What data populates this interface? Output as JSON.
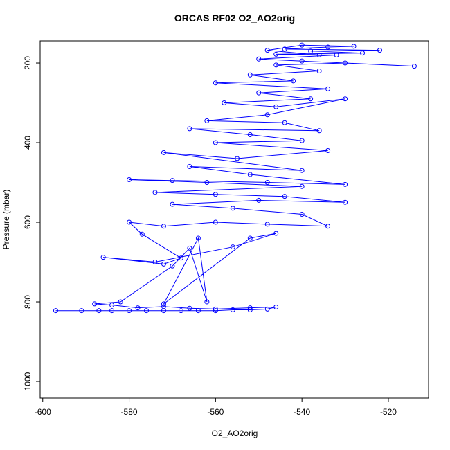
{
  "chart_data": {
    "type": "line",
    "title": "ORCAS RF02 O2_AO2orig",
    "x_label": "O2_AO2orig",
    "y_label": "Pressure (mbar)",
    "color": "#0000ff",
    "markers": true,
    "y_reversed": true,
    "xlim": [
      -600.6,
      -510.7
    ],
    "ylim": [
      144.3,
      1041.7
    ],
    "xticks": [
      -600,
      -580,
      -560,
      -540,
      -520
    ],
    "yticks": [
      200,
      400,
      600,
      800,
      1000
    ],
    "x": [
      -597,
      -591,
      -587,
      -584,
      -580,
      -576,
      -572,
      -568,
      -564,
      -560,
      -556,
      -552,
      -548,
      -546,
      -552,
      -560,
      -566,
      -572,
      -578,
      -584,
      -588,
      -582,
      -570,
      -566,
      -562,
      -564,
      -572,
      -552,
      -546,
      -556,
      -574,
      -586,
      -572,
      -568,
      -577,
      -580,
      -572,
      -560,
      -548,
      -534,
      -540,
      -556,
      -570,
      -550,
      -530,
      -544,
      -560,
      -574,
      -540,
      -562,
      -580,
      -570,
      -548,
      -530,
      -552,
      -566,
      -540,
      -572,
      -555,
      -534,
      -560,
      -540,
      -552,
      -566,
      -536,
      -544,
      -562,
      -548,
      -530,
      -546,
      -558,
      -538,
      -550,
      -534,
      -560,
      -542,
      -552,
      -536,
      -546,
      -530,
      -514,
      -540,
      -550,
      -532,
      -546,
      -526,
      -538,
      -522,
      -544,
      -534,
      -528,
      -540,
      -548,
      -536
    ],
    "values": [
      822,
      822,
      822,
      822,
      822,
      822,
      822,
      822,
      822,
      822,
      820,
      820,
      818,
      813,
      815,
      818,
      816,
      812,
      815,
      808,
      805,
      800,
      710,
      665,
      800,
      640,
      805,
      640,
      628,
      662,
      700,
      688,
      705,
      690,
      630,
      600,
      610,
      600,
      605,
      610,
      580,
      565,
      555,
      545,
      550,
      535,
      530,
      525,
      510,
      500,
      493,
      495,
      500,
      505,
      480,
      460,
      470,
      425,
      440,
      420,
      400,
      395,
      380,
      365,
      370,
      350,
      345,
      330,
      290,
      310,
      300,
      290,
      275,
      265,
      250,
      245,
      230,
      220,
      205,
      200,
      208,
      195,
      190,
      180,
      178,
      175,
      170,
      168,
      165,
      160,
      158,
      155,
      168,
      180
    ]
  }
}
